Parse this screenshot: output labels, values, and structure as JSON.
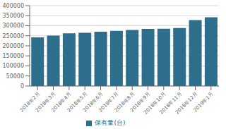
{
  "chart_data": {
    "type": "bar",
    "categories": [
      "2018年2月",
      "2018年3月",
      "2018年4月",
      "2018年5月",
      "2018年6月",
      "2018年7月",
      "2018年8月",
      "2018年9月",
      "2018年10月",
      "2018年11月",
      "2018年12月",
      "2019年1月"
    ],
    "series": [
      {
        "name": "保有量(台)",
        "color": "#2D6E8D",
        "values": [
          242000,
          251000,
          262000,
          265000,
          270000,
          275000,
          279000,
          284000,
          285000,
          289000,
          328000,
          342000
        ]
      }
    ],
    "ylim": [
      0,
      400000
    ],
    "yticks": [
      0,
      50000,
      100000,
      150000,
      200000,
      250000,
      300000,
      350000,
      400000
    ],
    "grid": true,
    "legend": "bottom"
  }
}
